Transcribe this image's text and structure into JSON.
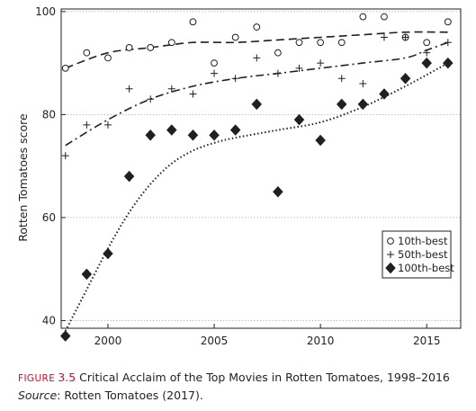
{
  "chart_data": {
    "type": "scatter",
    "ylabel": "Rotten Tomatoes score",
    "xlabel": "",
    "xlim": [
      1997.8,
      2016.6
    ],
    "ylim": [
      38.5,
      100.5
    ],
    "x_ticks": [
      2000,
      2005,
      2010,
      2015
    ],
    "y_ticks": [
      40,
      60,
      80,
      100
    ],
    "grid": "dotted horizontal",
    "legend_position": "bottom-right",
    "series": [
      {
        "name": "10th-best",
        "marker": "open-circle",
        "trend": "dashed",
        "points": [
          [
            1998,
            89
          ],
          [
            1999,
            92
          ],
          [
            2000,
            91
          ],
          [
            2001,
            93
          ],
          [
            2002,
            93
          ],
          [
            2003,
            94
          ],
          [
            2004,
            98
          ],
          [
            2005,
            90
          ],
          [
            2006,
            95
          ],
          [
            2007,
            97
          ],
          [
            2008,
            92
          ],
          [
            2009,
            94
          ],
          [
            2010,
            94
          ],
          [
            2011,
            94
          ],
          [
            2012,
            99
          ],
          [
            2013,
            99
          ],
          [
            2014,
            95
          ],
          [
            2015,
            94
          ],
          [
            2016,
            98
          ]
        ],
        "trend_points": [
          [
            1998,
            89
          ],
          [
            2000,
            92
          ],
          [
            2002,
            93
          ],
          [
            2004,
            94
          ],
          [
            2006,
            94
          ],
          [
            2008,
            94.5
          ],
          [
            2010,
            95
          ],
          [
            2012,
            95.5
          ],
          [
            2014,
            96
          ],
          [
            2016,
            96
          ]
        ]
      },
      {
        "name": "50th-best",
        "marker": "plus",
        "trend": "dash-dot",
        "points": [
          [
            1998,
            72
          ],
          [
            1999,
            78
          ],
          [
            2000,
            78
          ],
          [
            2001,
            85
          ],
          [
            2002,
            83
          ],
          [
            2003,
            85
          ],
          [
            2004,
            84
          ],
          [
            2005,
            88
          ],
          [
            2006,
            87
          ],
          [
            2007,
            91
          ],
          [
            2008,
            88
          ],
          [
            2009,
            89
          ],
          [
            2010,
            90
          ],
          [
            2011,
            87
          ],
          [
            2012,
            86
          ],
          [
            2013,
            95
          ],
          [
            2014,
            95
          ],
          [
            2015,
            92
          ],
          [
            2016,
            94
          ]
        ],
        "trend_points": [
          [
            1998,
            74
          ],
          [
            2000,
            79
          ],
          [
            2002,
            83
          ],
          [
            2004,
            85.5
          ],
          [
            2006,
            87
          ],
          [
            2008,
            88
          ],
          [
            2010,
            89
          ],
          [
            2012,
            90
          ],
          [
            2014,
            91
          ],
          [
            2015,
            92.5
          ],
          [
            2016,
            94
          ]
        ]
      },
      {
        "name": "100th-best",
        "marker": "filled-diamond",
        "trend": "dotted",
        "points": [
          [
            1998,
            37
          ],
          [
            1999,
            49
          ],
          [
            2000,
            53
          ],
          [
            2001,
            68
          ],
          [
            2002,
            76
          ],
          [
            2003,
            77
          ],
          [
            2004,
            76
          ],
          [
            2005,
            76
          ],
          [
            2006,
            77
          ],
          [
            2007,
            82
          ],
          [
            2008,
            65
          ],
          [
            2009,
            79
          ],
          [
            2010,
            75
          ],
          [
            2011,
            82
          ],
          [
            2012,
            82
          ],
          [
            2013,
            84
          ],
          [
            2014,
            87
          ],
          [
            2015,
            90
          ],
          [
            2016,
            90
          ]
        ],
        "trend_points": [
          [
            1998,
            38
          ],
          [
            1999,
            46
          ],
          [
            2000,
            54
          ],
          [
            2001,
            61
          ],
          [
            2002,
            66.5
          ],
          [
            2003,
            70.5
          ],
          [
            2004,
            73
          ],
          [
            2005,
            74.5
          ],
          [
            2006,
            75.5
          ],
          [
            2008,
            77
          ],
          [
            2010,
            78.5
          ],
          [
            2012,
            81.5
          ],
          [
            2014,
            85.5
          ],
          [
            2016,
            90
          ]
        ]
      }
    ]
  },
  "caption": {
    "label": "FIGURE",
    "number": "3.5",
    "text": "Critical Acclaim of the Top Movies in Rotten Tomatoes, 1998–2016",
    "source_label": "Source",
    "source_text": ": Rotten Tomatoes (2017)."
  },
  "colors": {
    "ink": "#231f20",
    "caption_accent": "#c8102e",
    "grid": "#999999"
  }
}
